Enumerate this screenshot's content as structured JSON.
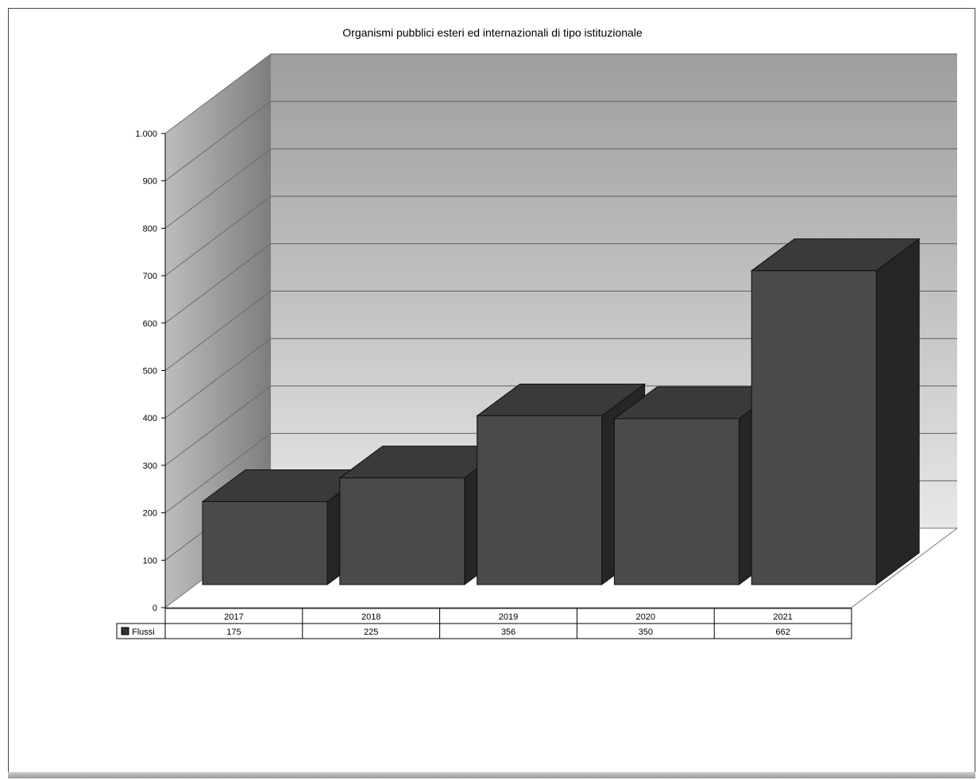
{
  "chart_data": {
    "type": "bar",
    "title": "Organismi pubblici esteri ed internazionali di tipo istituzionale",
    "categories": [
      "2017",
      "2018",
      "2019",
      "2020",
      "2021"
    ],
    "series": [
      {
        "name": "Flussi",
        "values": [
          175,
          225,
          356,
          350,
          662
        ],
        "value_labels": [
          "175",
          "225",
          "356",
          "350",
          "662"
        ]
      }
    ],
    "ylim": [
      0,
      1000
    ],
    "yticks": [
      0,
      100,
      200,
      300,
      400,
      500,
      600,
      700,
      800,
      900,
      1000
    ],
    "ytick_labels": [
      "0",
      "100",
      "200",
      "300",
      "400",
      "500",
      "600",
      "700",
      "800",
      "900",
      "1.000"
    ],
    "grid": true,
    "legend": "data-table",
    "three_d": true,
    "colors": {
      "bar_front": "#4a4a4a",
      "bar_top": "#3a3a3a",
      "bar_side": "#262626",
      "back_wall": "#bdbdbd",
      "side_wall": "#8c8c8c",
      "legend_swatch": "#333333"
    }
  }
}
